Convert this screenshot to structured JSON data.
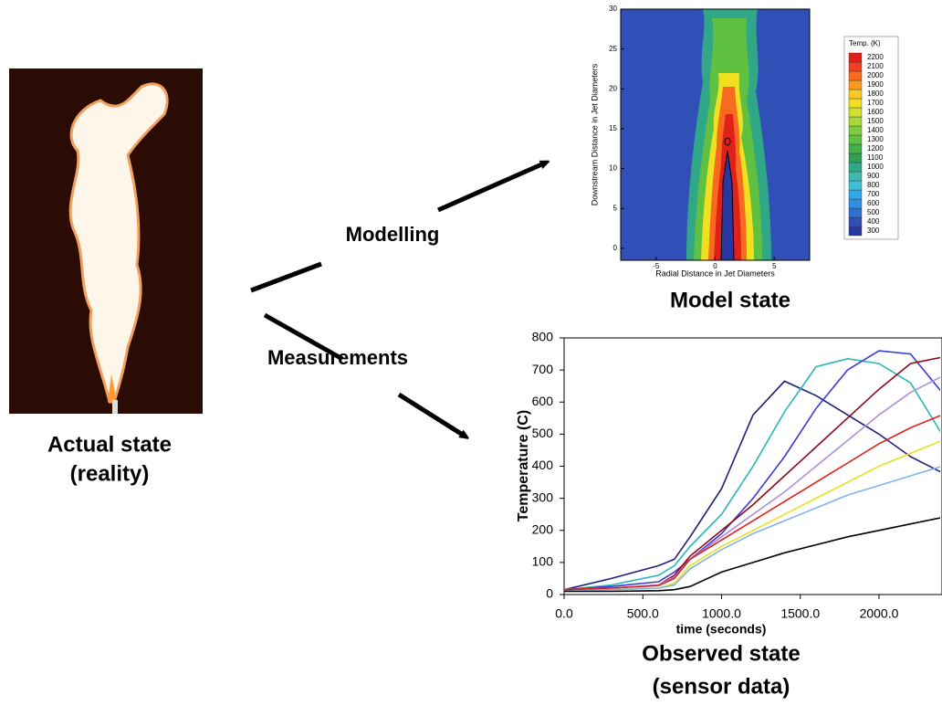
{
  "labels": {
    "actual_state": "Actual state",
    "actual_state_note": "(reality)",
    "modelling": "Modelling",
    "measurements": "Measurements",
    "model_state": "Model state",
    "observed_state": "Observed state",
    "observed_state_note": "(sensor data)"
  },
  "model_plot": {
    "x_label": "Radial Distance in Jet Diameters",
    "y_label": "Downstream Distance in Jet Diameters",
    "xlim": [
      -8,
      8
    ],
    "ylim": [
      -1.5,
      30
    ],
    "xticks": [
      -5,
      0,
      5
    ],
    "yticks": [
      0,
      5,
      10,
      15,
      20,
      25,
      30
    ],
    "colorbar": {
      "title": "Temp. (K)",
      "levels": [
        300,
        400,
        500,
        600,
        700,
        800,
        900,
        1000,
        1100,
        1200,
        1300,
        1400,
        1500,
        1600,
        1700,
        1800,
        1900,
        2000,
        2100,
        2200
      ],
      "colors": [
        "#2838a0",
        "#3050b8",
        "#3070d0",
        "#3090e0",
        "#30a8e8",
        "#40c0d8",
        "#40b8b0",
        "#30a888",
        "#30a050",
        "#40b048",
        "#60c040",
        "#80cc40",
        "#a8d838",
        "#d0e030",
        "#f0e020",
        "#fbc820",
        "#fb9a20",
        "#f86a20",
        "#f04020",
        "#e0201b"
      ]
    }
  },
  "temperature_chart": {
    "type": "line",
    "x_label": "time (seconds)",
    "y_label": "Temperature (C)",
    "xlim": [
      0,
      2400
    ],
    "ylim": [
      0,
      800
    ],
    "xticks": [
      {
        "value": 0,
        "label": "0.0"
      },
      {
        "value": 500,
        "label": "500.0"
      },
      {
        "value": 1000,
        "label": "1000.0"
      },
      {
        "value": 1500,
        "label": "1500.0"
      },
      {
        "value": 2000,
        "label": "2000.0"
      }
    ],
    "yticks": [
      0,
      100,
      200,
      300,
      400,
      500,
      600,
      700,
      800
    ],
    "x": [
      0,
      300,
      600,
      700,
      800,
      1000,
      1200,
      1400,
      1600,
      1800,
      2000,
      2200,
      2400
    ],
    "series": [
      {
        "color": "#1f1f7a",
        "values": [
          15,
          50,
          90,
          110,
          180,
          330,
          560,
          665,
          620,
          560,
          500,
          430,
          380
        ]
      },
      {
        "color": "#2ab7b7",
        "values": [
          15,
          30,
          60,
          90,
          150,
          250,
          400,
          570,
          710,
          735,
          720,
          660,
          500
        ]
      },
      {
        "color": "#3a3ad6",
        "values": [
          15,
          25,
          40,
          70,
          110,
          190,
          300,
          430,
          580,
          700,
          760,
          750,
          630
        ]
      },
      {
        "color": "#8b0a1a",
        "values": [
          15,
          20,
          30,
          60,
          120,
          200,
          280,
          370,
          460,
          550,
          640,
          720,
          740
        ]
      },
      {
        "color": "#b08fd8",
        "values": [
          15,
          20,
          30,
          55,
          110,
          180,
          250,
          320,
          400,
          480,
          560,
          630,
          680
        ]
      },
      {
        "color": "#e0201b",
        "values": [
          15,
          20,
          28,
          50,
          110,
          170,
          230,
          290,
          350,
          410,
          470,
          520,
          560
        ]
      },
      {
        "color": "#e8e020",
        "values": [
          10,
          15,
          20,
          35,
          90,
          150,
          200,
          250,
          300,
          350,
          400,
          440,
          480
        ]
      },
      {
        "color": "#7fb3e8",
        "values": [
          10,
          15,
          20,
          30,
          80,
          140,
          190,
          230,
          270,
          310,
          340,
          370,
          400
        ]
      },
      {
        "color": "#000000",
        "values": [
          10,
          10,
          12,
          15,
          25,
          70,
          100,
          130,
          155,
          180,
          200,
          220,
          240
        ]
      }
    ]
  }
}
